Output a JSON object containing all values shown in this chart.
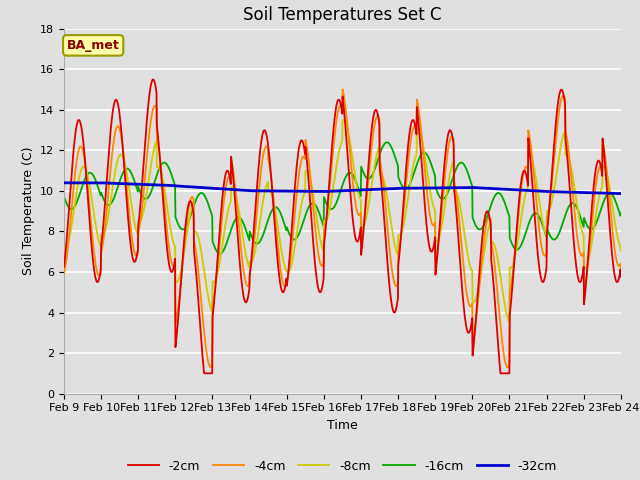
{
  "title": "Soil Temperatures Set C",
  "xlabel": "Time",
  "ylabel": "Soil Temperature (C)",
  "ylim": [
    0,
    18
  ],
  "x_tick_labels": [
    "Feb 9",
    "Feb 10",
    "Feb 11",
    "Feb 12",
    "Feb 13",
    "Feb 14",
    "Feb 15",
    "Feb 16",
    "Feb 17",
    "Feb 18",
    "Feb 19",
    "Feb 20",
    "Feb 21",
    "Feb 22",
    "Feb 23",
    "Feb 24"
  ],
  "series_labels": [
    "-2cm",
    "-4cm",
    "-8cm",
    "-16cm",
    "-32cm"
  ],
  "series_colors": [
    "#dd0000",
    "#ff8800",
    "#cccc00",
    "#00aa00",
    "#0000cc"
  ],
  "series_linewidths": [
    1.3,
    1.3,
    1.3,
    1.3,
    2.0
  ],
  "bg_color": "#e0e0e0",
  "annotation_text": "BA_met",
  "grid_color": "#ffffff",
  "title_fontsize": 12
}
